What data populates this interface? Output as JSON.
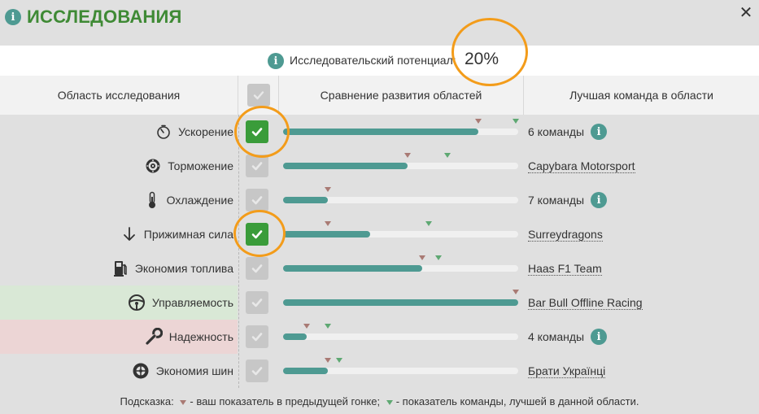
{
  "header": {
    "title": "ИССЛЕДОВАНИЯ",
    "close_glyph": "✕"
  },
  "potential": {
    "label": "Исследовательский потенциал:",
    "value": "20%"
  },
  "columns": {
    "area": "Область исследования",
    "compare": "Сравнение развития областей",
    "team": "Лучшая команда в области"
  },
  "rows": [
    {
      "label": "Ускорение",
      "icon": "stopwatch-icon",
      "checked": true,
      "fill": 0.83,
      "prev": 0.83,
      "best": 0.99,
      "team": "6 команды",
      "team_info": true,
      "highlight": null
    },
    {
      "label": "Торможение",
      "icon": "brake-disc-icon",
      "checked": false,
      "fill": 0.53,
      "prev": 0.53,
      "best": 0.7,
      "team": "Capybara Motorsport",
      "team_info": false,
      "highlight": null
    },
    {
      "label": "Охлаждение",
      "icon": "thermometer-icon",
      "checked": false,
      "fill": 0.19,
      "prev": 0.19,
      "best": 0.19,
      "team": "7 команды",
      "team_info": true,
      "highlight": null
    },
    {
      "label": "Прижимная сила",
      "icon": "arrow-down-icon",
      "checked": true,
      "fill": 0.37,
      "prev": 0.19,
      "best": 0.62,
      "team": "Surreydragons",
      "team_info": false,
      "highlight": null
    },
    {
      "label": "Экономия топлива",
      "icon": "fuel-pump-icon",
      "checked": false,
      "fill": 0.59,
      "prev": 0.59,
      "best": 0.66,
      "team": "Haas F1 Team",
      "team_info": false,
      "highlight": null
    },
    {
      "label": "Управляемость",
      "icon": "steering-wheel-icon",
      "checked": false,
      "fill": 1.0,
      "prev": 0.99,
      "best": 0.99,
      "team": "Bar Bull Offline Racing",
      "team_info": false,
      "highlight": "good"
    },
    {
      "label": "Надежность",
      "icon": "wrench-icon",
      "checked": false,
      "fill": 0.1,
      "prev": 0.1,
      "best": 0.19,
      "team": "4 команды",
      "team_info": true,
      "highlight": "bad"
    },
    {
      "label": "Экономия шин",
      "icon": "tyre-icon",
      "checked": false,
      "fill": 0.19,
      "prev": 0.19,
      "best": 0.24,
      "team": "Брати Українці",
      "team_info": false,
      "highlight": null
    }
  ],
  "hint": {
    "prefix": "Подсказка:",
    "prev_text": "- ваш показатель в предыдущей гонке;",
    "best_text": "- показатель команды, лучшей в данной области."
  },
  "colors": {
    "accent": "#3f8a35",
    "bar": "#4e9a92",
    "prev_marker": "#a97a74",
    "best_marker": "#5ea872",
    "checkbox_on": "#3a9c3a",
    "checkbox_off": "#c7c7c7",
    "highlight_good": "#d9e8d6",
    "highlight_bad": "#ecd5d5",
    "ring": "#f39c1a"
  }
}
